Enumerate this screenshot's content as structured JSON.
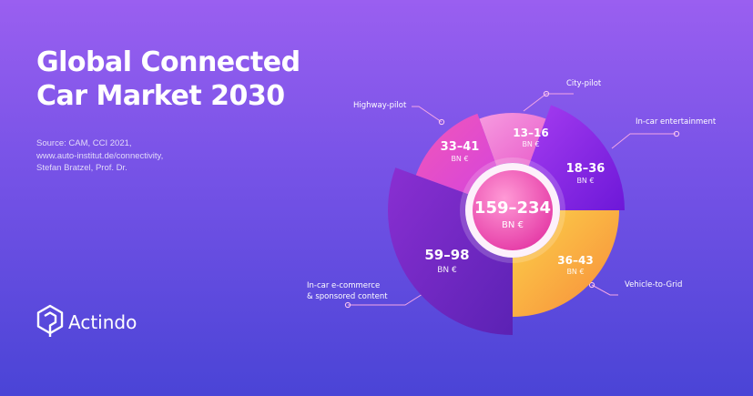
{
  "header": {
    "title_lines": [
      "Global Connected",
      "Car Market 2030"
    ]
  },
  "source": {
    "lines": [
      "Source: CAM, CCI 2021,",
      "www.auto-institut.de/connectivity,",
      "Stefan Bratzel, Prof. Dr."
    ]
  },
  "brand": {
    "name": "Actindo",
    "logo_icon": "actindo-logo-icon"
  },
  "chart_data": {
    "type": "pie",
    "title": "Global Connected Car Market 2030",
    "center": {
      "value": "159–234",
      "unit": "BN €"
    },
    "segments": [
      {
        "name": "City-pilot",
        "value": "13–16",
        "unit": "BN €",
        "min": 13,
        "max": 16,
        "color": "#f072cf"
      },
      {
        "name": "In-car entertainment",
        "value": "18–36",
        "unit": "BN €",
        "min": 18,
        "max": 36,
        "color": "#8a28e6"
      },
      {
        "name": "Vehicle-to-Grid",
        "value": "36–43",
        "unit": "BN €",
        "min": 36,
        "max": 43,
        "color": "#fbb236"
      },
      {
        "name": "In-car e-commerce & sponsored content",
        "value": "59–98",
        "unit": "BN €",
        "min": 59,
        "max": 98,
        "color": "#7a2cc7"
      },
      {
        "name": "Highway-pilot",
        "value": "33–41",
        "unit": "BN €",
        "min": 33,
        "max": 41,
        "color": "#f150b3"
      }
    ]
  }
}
